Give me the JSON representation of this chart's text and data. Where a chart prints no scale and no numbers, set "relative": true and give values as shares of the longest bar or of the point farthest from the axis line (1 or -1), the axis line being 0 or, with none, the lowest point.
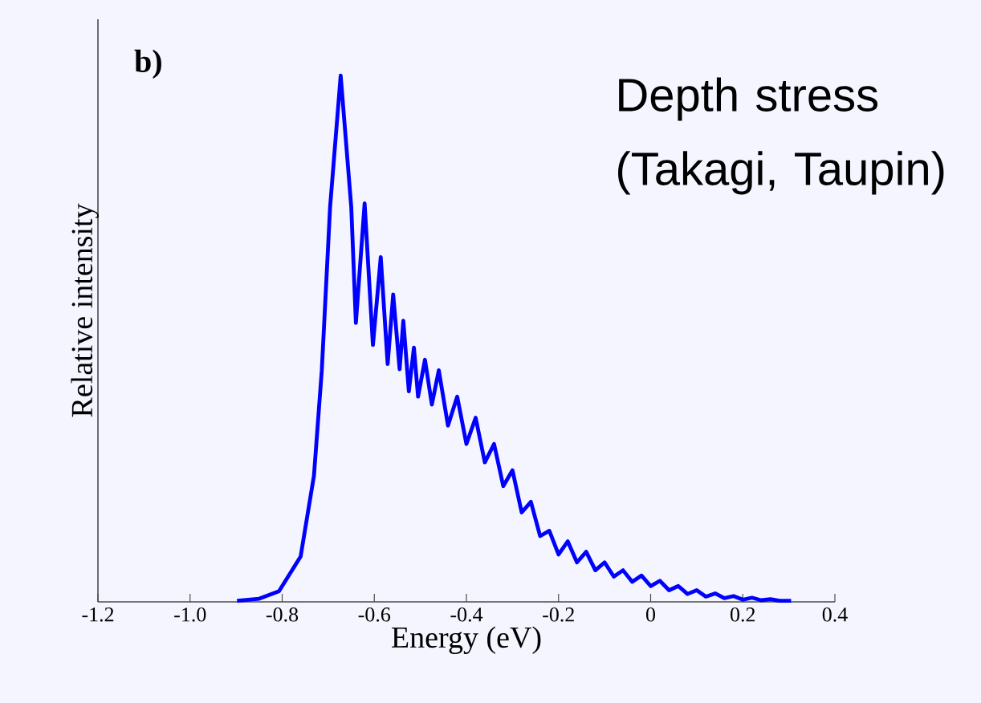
{
  "chart_data": {
    "type": "line",
    "relative": true,
    "tick_labels": "x",
    "xlabel": "Energy (eV)",
    "ylabel": "Relative intensity",
    "annotations": [
      "b)",
      "Depth stress (Takagi, Taupin)"
    ],
    "xlim": [
      -1.2,
      0.4
    ],
    "xticks": [
      -1.2,
      {
        "value": -1.0,
        "label": "-1.0"
      },
      -0.8,
      -0.6,
      -0.4,
      -0.2,
      0,
      0.2,
      0.4
    ],
    "series": [
      {
        "color": "#0000ff",
        "x": [
          -0.898,
          -0.85,
          -0.807,
          -0.76,
          -0.731,
          -0.714,
          -0.696,
          -0.673,
          -0.65,
          -0.64,
          -0.621,
          -0.603,
          -0.586,
          -0.571,
          -0.559,
          -0.545,
          -0.537,
          -0.525,
          -0.514,
          -0.505,
          -0.49,
          -0.475,
          -0.46,
          -0.44,
          -0.42,
          -0.4,
          -0.38,
          -0.36,
          -0.34,
          -0.32,
          -0.3,
          -0.28,
          -0.26,
          -0.24,
          -0.22,
          -0.2,
          -0.18,
          -0.16,
          -0.14,
          -0.12,
          -0.1,
          -0.08,
          -0.06,
          -0.04,
          -0.02,
          0,
          0.02,
          0.04,
          0.06,
          0.08,
          0.1,
          0.12,
          0.14,
          0.16,
          0.18,
          0.2,
          0.22,
          0.24,
          0.26,
          0.28,
          0.305
        ],
        "values": [
          0.002,
          0.006,
          0.02,
          0.086,
          0.24,
          0.44,
          0.75,
          1,
          0.75,
          0.53,
          0.757,
          0.488,
          0.655,
          0.452,
          0.584,
          0.442,
          0.534,
          0.4,
          0.483,
          0.39,
          0.46,
          0.375,
          0.44,
          0.335,
          0.39,
          0.3,
          0.35,
          0.265,
          0.3,
          0.22,
          0.25,
          0.17,
          0.19,
          0.125,
          0.135,
          0.09,
          0.115,
          0.075,
          0.095,
          0.06,
          0.075,
          0.048,
          0.06,
          0.038,
          0.05,
          0.03,
          0.04,
          0.022,
          0.03,
          0.015,
          0.022,
          0.01,
          0.016,
          0.007,
          0.011,
          0.004,
          0.008,
          0.003,
          0.005,
          0.002,
          0.002
        ]
      }
    ]
  }
}
